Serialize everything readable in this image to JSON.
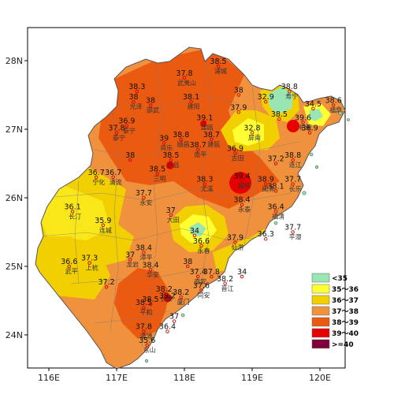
{
  "chart_data": {
    "type": "heatmap",
    "axes": {
      "x_ticks": [
        "116E",
        "117E",
        "118E",
        "119E",
        "120E"
      ],
      "y_ticks": [
        "28N",
        "27N",
        "26N",
        "25N",
        "24N"
      ],
      "x_range": [
        115.8,
        120.8
      ],
      "y_range": [
        23.5,
        28.5
      ]
    },
    "legend": {
      "placement": "bottom-right",
      "items": [
        {
          "label": "<35",
          "color": "#99e6b3"
        },
        {
          "label": "35～36",
          "color": "#ffff33"
        },
        {
          "label": "36～37",
          "color": "#f2cf00"
        },
        {
          "label": "37～38",
          "color": "#f0913e"
        },
        {
          "label": "38～39",
          "color": "#eb5a11"
        },
        {
          "label": "39～40",
          "color": "#e60000"
        },
        {
          "label": ">=40",
          "color": "#80003c"
        }
      ]
    },
    "stations": [
      {
        "lon": 118.0,
        "lat": 27.75,
        "value": "37.8",
        "name": "武夷山"
      },
      {
        "lon": 118.5,
        "lat": 27.92,
        "value": "38.5",
        "name": "浦城"
      },
      {
        "lon": 117.3,
        "lat": 27.55,
        "value": "38.3",
        "name": ""
      },
      {
        "lon": 117.25,
        "lat": 27.4,
        "value": "38",
        "name": "光泽"
      },
      {
        "lon": 117.5,
        "lat": 27.35,
        "value": "38",
        "name": "邵武"
      },
      {
        "lon": 118.1,
        "lat": 27.4,
        "value": "38.1",
        "name": "建阳"
      },
      {
        "lon": 118.8,
        "lat": 27.5,
        "value": "38",
        "name": ""
      },
      {
        "lon": 118.8,
        "lat": 27.25,
        "value": "37.9",
        "name": ""
      },
      {
        "lon": 119.2,
        "lat": 27.4,
        "value": "32.9",
        "name": ""
      },
      {
        "lon": 119.55,
        "lat": 27.55,
        "value": "38.8",
        "name": "寿宁"
      },
      {
        "lon": 119.9,
        "lat": 27.3,
        "value": "34.5",
        "name": ""
      },
      {
        "lon": 120.2,
        "lat": 27.35,
        "value": "38.6",
        "name": "福鼎"
      },
      {
        "lon": 118.3,
        "lat": 27.1,
        "value": "39.1",
        "name": "建瓯"
      },
      {
        "lon": 119.0,
        "lat": 26.95,
        "value": "32.8",
        "name": "屏南"
      },
      {
        "lon": 119.4,
        "lat": 27.15,
        "value": "38.5",
        "name": ""
      },
      {
        "lon": 119.75,
        "lat": 27.1,
        "value": "39.6",
        "name": "柘荣"
      },
      {
        "lon": 119.85,
        "lat": 26.95,
        "value": "36.9",
        "name": ""
      },
      {
        "lon": 117.0,
        "lat": 26.95,
        "value": "37.8",
        "name": "泰宁"
      },
      {
        "lon": 117.15,
        "lat": 27.05,
        "value": "36.9",
        "name": "泰宁"
      },
      {
        "lon": 117.7,
        "lat": 26.8,
        "value": "39",
        "name": "将乐"
      },
      {
        "lon": 117.95,
        "lat": 26.85,
        "value": "38.8",
        "name": "顺昌"
      },
      {
        "lon": 118.4,
        "lat": 26.85,
        "value": "38.7",
        "name": "建瓯"
      },
      {
        "lon": 118.75,
        "lat": 26.65,
        "value": "36.9",
        "name": "古田"
      },
      {
        "lon": 119.35,
        "lat": 26.5,
        "value": "37.2",
        "name": ""
      },
      {
        "lon": 117.2,
        "lat": 26.55,
        "value": "38",
        "name": ""
      },
      {
        "lon": 117.8,
        "lat": 26.55,
        "value": "38.5",
        "name": "沙县"
      },
      {
        "lon": 118.2,
        "lat": 26.7,
        "value": "38.7",
        "name": "南平"
      },
      {
        "lon": 119.6,
        "lat": 26.55,
        "value": "38.8",
        "name": "连江"
      },
      {
        "lon": 116.7,
        "lat": 26.3,
        "value": "36.7",
        "name": "宁化"
      },
      {
        "lon": 116.95,
        "lat": 26.3,
        "value": "36.7",
        "name": "清流"
      },
      {
        "lon": 117.6,
        "lat": 26.35,
        "value": "38.5",
        "name": "三明"
      },
      {
        "lon": 118.3,
        "lat": 26.2,
        "value": "38.3",
        "name": "尤溪"
      },
      {
        "lon": 118.85,
        "lat": 26.25,
        "value": "39.4",
        "name": "闽侯"
      },
      {
        "lon": 119.2,
        "lat": 26.2,
        "value": "38.9",
        "name": "闽清"
      },
      {
        "lon": 119.35,
        "lat": 26.1,
        "value": "38.1",
        "name": ""
      },
      {
        "lon": 119.6,
        "lat": 26.2,
        "value": "37.7",
        "name": "长乐"
      },
      {
        "lon": 117.4,
        "lat": 26.0,
        "value": "37.7",
        "name": "永安"
      },
      {
        "lon": 118.85,
        "lat": 25.9,
        "value": "38.4",
        "name": "永泰"
      },
      {
        "lon": 119.35,
        "lat": 25.8,
        "value": "36.4",
        "name": "福清"
      },
      {
        "lon": 116.35,
        "lat": 25.8,
        "value": "36.1",
        "name": "长汀"
      },
      {
        "lon": 116.8,
        "lat": 25.6,
        "value": "35.9",
        "name": "连城"
      },
      {
        "lon": 117.8,
        "lat": 25.75,
        "value": "37",
        "name": "大田"
      },
      {
        "lon": 118.15,
        "lat": 25.45,
        "value": "34",
        "name": ""
      },
      {
        "lon": 118.25,
        "lat": 25.3,
        "value": "36.6",
        "name": "永春"
      },
      {
        "lon": 118.75,
        "lat": 25.35,
        "value": "37.9",
        "name": "仙游"
      },
      {
        "lon": 119.2,
        "lat": 25.4,
        "value": "36.3",
        "name": ""
      },
      {
        "lon": 119.6,
        "lat": 25.5,
        "value": "37.7",
        "name": "平潭"
      },
      {
        "lon": 117.4,
        "lat": 25.2,
        "value": "38.4",
        "name": "漳平"
      },
      {
        "lon": 117.5,
        "lat": 24.95,
        "value": "38.4",
        "name": "华安"
      },
      {
        "lon": 118.05,
        "lat": 25.0,
        "value": "38",
        "name": ""
      },
      {
        "lon": 118.2,
        "lat": 24.85,
        "value": "37.4",
        "name": "南安"
      },
      {
        "lon": 118.4,
        "lat": 24.85,
        "value": "37.8",
        "name": ""
      },
      {
        "lon": 118.6,
        "lat": 24.75,
        "value": "38.2",
        "name": "晋江"
      },
      {
        "lon": 118.85,
        "lat": 24.85,
        "value": "34",
        "name": ""
      },
      {
        "lon": 116.3,
        "lat": 25.0,
        "value": "36.6",
        "name": "武平"
      },
      {
        "lon": 116.6,
        "lat": 25.05,
        "value": "37.3",
        "name": "上杭"
      },
      {
        "lon": 117.2,
        "lat": 25.1,
        "value": "37",
        "name": "龙岩"
      },
      {
        "lon": 116.85,
        "lat": 24.7,
        "value": "37.2",
        "name": ""
      },
      {
        "lon": 117.7,
        "lat": 24.6,
        "value": "38.2",
        "name": "长泰"
      },
      {
        "lon": 118.25,
        "lat": 24.65,
        "value": "37.6",
        "name": "同安"
      },
      {
        "lon": 117.4,
        "lat": 24.4,
        "value": "38.5",
        "name": "平和"
      },
      {
        "lon": 117.5,
        "lat": 24.45,
        "value": "38.5",
        "name": ""
      },
      {
        "lon": 117.75,
        "lat": 24.5,
        "value": "39.2",
        "name": ""
      },
      {
        "lon": 117.95,
        "lat": 24.55,
        "value": "38.2",
        "name": "厦门"
      },
      {
        "lon": 117.85,
        "lat": 24.2,
        "value": "37",
        "name": ""
      },
      {
        "lon": 117.4,
        "lat": 24.05,
        "value": "37.8",
        "name": "漳浦"
      },
      {
        "lon": 117.75,
        "lat": 24.05,
        "value": "36.4",
        "name": ""
      },
      {
        "lon": 117.45,
        "lat": 23.85,
        "value": "35.6",
        "name": "东山"
      }
    ]
  }
}
